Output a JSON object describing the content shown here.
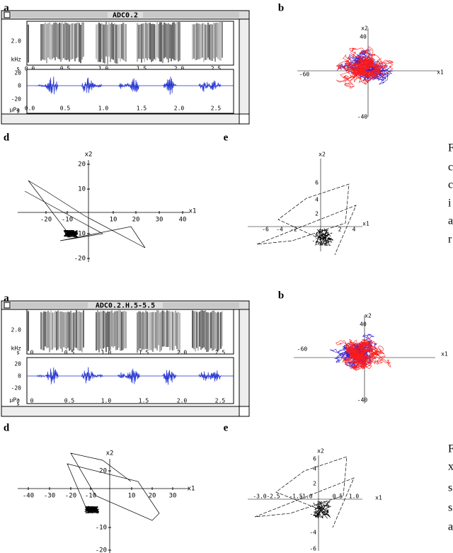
{
  "figures": [
    {
      "a": {
        "label": "a",
        "title": "ADC0.2",
        "spec_yticks": [
          "2.0"
        ],
        "spec_unit": "kHz",
        "spec_origin": "s",
        "time_ticks": [
          "0.0",
          "0.5",
          "1.0",
          "1.5",
          "2.0",
          "2.5"
        ],
        "wave_yticks": [
          "20",
          "0",
          "-20"
        ],
        "wave_unit": "µPa",
        "wave_origin": "s",
        "wave_time_ticks": [
          "0.0",
          "0.5",
          "1.0",
          "1.5",
          "2.0",
          "2.5"
        ]
      },
      "b": {
        "label": "b",
        "y_label": "x2",
        "y_tick_top": "40",
        "x_tick_left": "-60",
        "x_label": "x1",
        "y_tick_bottom": "-40"
      },
      "d": {
        "label": "d",
        "xticks": [
          "-20",
          "-10",
          "10",
          "20",
          "30",
          "40"
        ],
        "yticks": [
          "20",
          "10",
          "-10",
          "-20"
        ],
        "x_label": "x1",
        "y_label": "x2"
      },
      "e": {
        "label": "e",
        "xticks": [
          "-6",
          "-4",
          "-2",
          "2",
          "4"
        ],
        "yticks": [
          "6",
          "4",
          "2",
          "-2"
        ],
        "x_label": "x1",
        "y_label": "x2"
      },
      "side_text": [
        "F",
        "c",
        "c",
        "i",
        "a",
        "r"
      ]
    },
    {
      "a": {
        "label": "a",
        "title": "ADC0.2.H.5-5.5",
        "spec_yticks": [
          "2.0"
        ],
        "spec_unit": "kHz",
        "spec_origin": "s",
        "time_ticks": [
          "0",
          "0.5",
          "1.0",
          "1.5",
          "2.0",
          "2.5"
        ],
        "wave_yticks": [
          "20",
          "0",
          "-20"
        ],
        "wave_unit": "µPa",
        "wave_origin": "s",
        "wave_time_ticks": [
          "0",
          "0.5",
          "1.0",
          "1.5",
          "2.0",
          "2.5"
        ]
      },
      "b": {
        "label": "b",
        "y_label": "x2",
        "y_tick_top": "40",
        "x_tick_left": "-60",
        "x_label": "x1",
        "y_tick_bottom": "-40"
      },
      "d": {
        "label": "d",
        "xticks": [
          "-40",
          "-30",
          "-20",
          "-10",
          "10",
          "20",
          "30"
        ],
        "yticks": [
          "20",
          "-10",
          "-20"
        ],
        "x_label": "x1",
        "y_label": "x2"
      },
      "e": {
        "label": "e",
        "xticks": [
          "-3.0",
          "-2.5",
          "-1.5",
          "-1.0",
          "0.5",
          "1.0"
        ],
        "yticks": [
          "6",
          "4",
          "2",
          "-2",
          "-4",
          "-6"
        ],
        "x_label": "x1",
        "y_label": "x2"
      },
      "side_text": [
        "F",
        "x",
        "s",
        "s",
        "a"
      ]
    }
  ]
}
